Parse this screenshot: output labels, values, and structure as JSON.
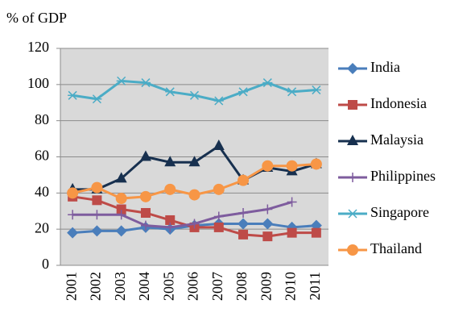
{
  "chart_data": {
    "type": "line",
    "title": "% of GDP",
    "categories": [
      "2001",
      "2002",
      "2003",
      "2004",
      "2005",
      "2006",
      "2007",
      "2008",
      "2009",
      "2010",
      "2011"
    ],
    "ylim": [
      0,
      120
    ],
    "yticks": [
      0,
      20,
      40,
      60,
      80,
      100,
      120
    ],
    "grid": true,
    "background": "#d9d9d9",
    "legend": "right",
    "series": [
      {
        "name": "India",
        "color": "#4a7ebb",
        "marker": "diamond",
        "values": [
          18,
          19,
          19,
          21,
          20,
          22,
          23,
          23,
          23,
          21,
          22
        ]
      },
      {
        "name": "Indonesia",
        "color": "#be4b48",
        "marker": "square",
        "values": [
          38,
          36,
          31,
          29,
          25,
          21,
          21,
          17,
          16,
          18,
          18
        ]
      },
      {
        "name": "Malaysia",
        "color": "#17304f",
        "marker": "triangle",
        "values": [
          42,
          42,
          48,
          60,
          57,
          57,
          66,
          47,
          54,
          52,
          56
        ]
      },
      {
        "name": "Philippines",
        "color": "#7e5c9e",
        "marker": "plus",
        "values": [
          28,
          28,
          28,
          22,
          21,
          23,
          27,
          29,
          31,
          35,
          null
        ]
      },
      {
        "name": "Singapore",
        "color": "#4bacc6",
        "marker": "star",
        "values": [
          94,
          92,
          102,
          101,
          96,
          94,
          91,
          96,
          101,
          96,
          97
        ]
      },
      {
        "name": "Thailand",
        "color": "#f79646",
        "marker": "circle",
        "values": [
          40,
          43,
          37,
          38,
          42,
          39,
          42,
          47,
          55,
          55,
          56
        ]
      }
    ]
  }
}
